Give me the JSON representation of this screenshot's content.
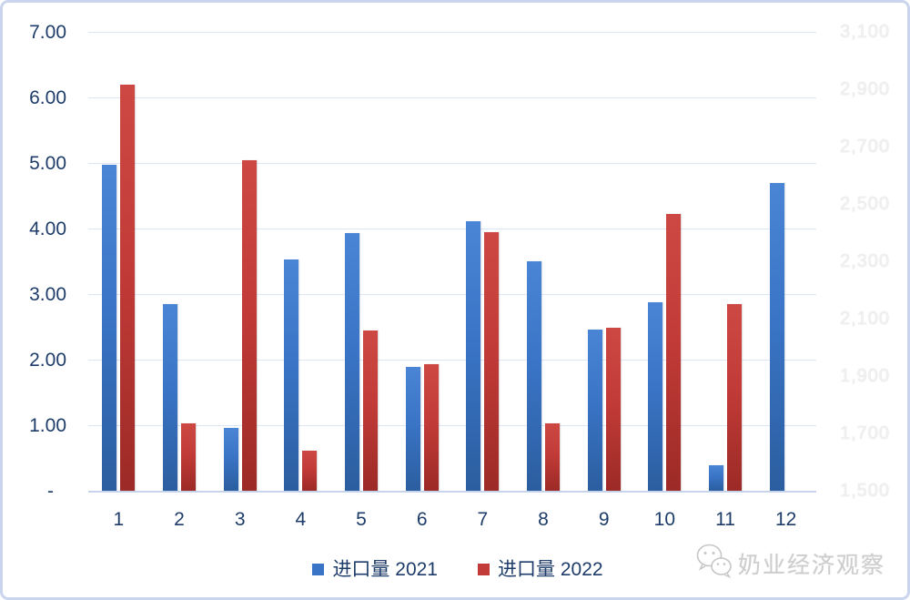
{
  "chart_data": {
    "type": "bar",
    "title": "",
    "categories": [
      "1",
      "2",
      "3",
      "4",
      "5",
      "6",
      "7",
      "8",
      "9",
      "10",
      "11",
      "12"
    ],
    "series": [
      {
        "name": "进口量 2021",
        "color": "#3a74c6",
        "values": [
          4.97,
          2.85,
          0.96,
          3.53,
          3.93,
          1.89,
          4.11,
          3.5,
          2.46,
          2.88,
          0.39,
          4.69
        ]
      },
      {
        "name": "进口量 2022",
        "color": "#c23b38",
        "values": [
          6.19,
          1.03,
          5.04,
          0.61,
          2.44,
          1.93,
          3.94,
          1.03,
          2.49,
          4.22,
          2.85,
          null
        ]
      }
    ],
    "left_axis": {
      "min": 0,
      "max": 7,
      "tick_step": 1,
      "tick_labels_top_to_bottom": [
        "7.00",
        "6.00",
        "5.00",
        "4.00",
        "3.00",
        "2.00",
        "1.00",
        "-"
      ]
    },
    "right_axis": {
      "min": 1500,
      "max": 3100,
      "tick_step": 200,
      "tick_labels_top_to_bottom": [
        "3,100",
        "2,900",
        "2,700",
        "2,500",
        "2,300",
        "2,100",
        "1,900",
        "1,700",
        "1,500"
      ]
    },
    "grid": true,
    "legend_position": "bottom",
    "colors": {
      "series_2021": "#3a74c6",
      "series_2022": "#c23b38",
      "gridline": "#dbe5f4",
      "axis_text": "#1e3c69",
      "right_axis_text": "#f1f1f1"
    }
  },
  "legend": {
    "items": [
      {
        "label": "进口量 2021",
        "color": "#3a74c6"
      },
      {
        "label": "进口量 2022",
        "color": "#c23b38"
      }
    ]
  },
  "watermark": {
    "label": "奶业经济观察",
    "icon": "wechat-icon"
  }
}
